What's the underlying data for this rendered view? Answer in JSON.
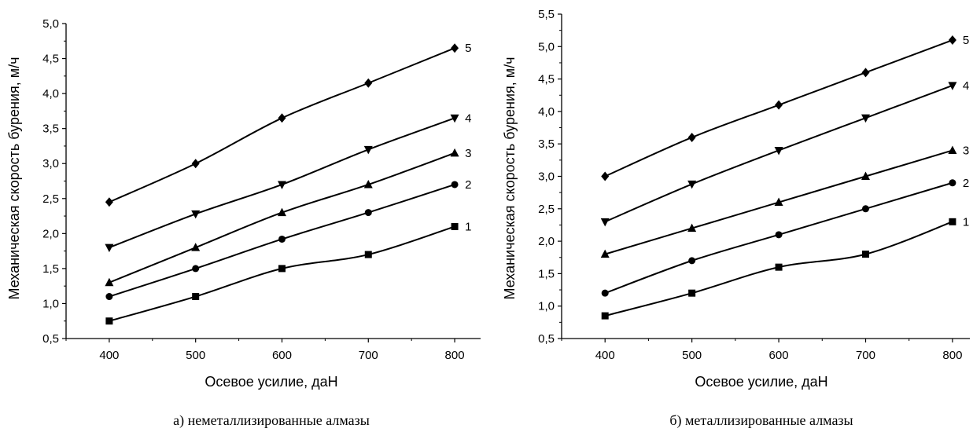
{
  "chart_data": [
    {
      "type": "line",
      "caption": "а) неметаллизированные алмазы",
      "xlabel": "Осевое усилие, даН",
      "ylabel": "Механическая скорость бурения, м/ч",
      "xlim": [
        350,
        830
      ],
      "ylim": [
        0.5,
        5.0
      ],
      "xticks": [
        400,
        500,
        600,
        700,
        800
      ],
      "xtick_labels": [
        "400",
        "500",
        "600",
        "700",
        "800"
      ],
      "yticks": [
        0.5,
        1.0,
        1.5,
        2.0,
        2.5,
        3.0,
        3.5,
        4.0,
        4.5,
        5.0
      ],
      "ytick_labels": [
        "0,5",
        "1,0",
        "1,5",
        "2,0",
        "2,5",
        "3,0",
        "3,5",
        "4,0",
        "4,5",
        "5,0"
      ],
      "grid": false,
      "x": [
        400,
        500,
        600,
        700,
        800
      ],
      "series": [
        {
          "name": "1",
          "marker": "square",
          "values": [
            0.75,
            1.1,
            1.5,
            1.7,
            2.1
          ]
        },
        {
          "name": "2",
          "marker": "circle",
          "values": [
            1.1,
            1.5,
            1.92,
            2.3,
            2.7
          ]
        },
        {
          "name": "3",
          "marker": "triangle-up",
          "values": [
            1.3,
            1.8,
            2.3,
            2.7,
            3.15
          ]
        },
        {
          "name": "4",
          "marker": "triangle-down",
          "values": [
            1.8,
            2.28,
            2.7,
            3.2,
            3.65
          ]
        },
        {
          "name": "5",
          "marker": "diamond",
          "values": [
            2.45,
            3.0,
            3.65,
            4.15,
            4.65
          ]
        }
      ]
    },
    {
      "type": "line",
      "caption": "б) металлизированные алмазы",
      "xlabel": "Осевое усилие, даН",
      "ylabel": "Механическая скорость бурения, м/ч",
      "xlim": [
        350,
        820
      ],
      "ylim": [
        0.5,
        5.5
      ],
      "xticks": [
        400,
        500,
        600,
        700,
        800
      ],
      "xtick_labels": [
        "400",
        "500",
        "600",
        "700",
        "800"
      ],
      "yticks": [
        0.5,
        1.0,
        1.5,
        2.0,
        2.5,
        3.0,
        3.5,
        4.0,
        4.5,
        5.0,
        5.5
      ],
      "ytick_labels": [
        "0,5",
        "1,0",
        "1,5",
        "2,0",
        "2,5",
        "3,0",
        "3,5",
        "4,0",
        "4,5",
        "5,0",
        "5,5"
      ],
      "grid": false,
      "x": [
        400,
        500,
        600,
        700,
        800
      ],
      "series": [
        {
          "name": "1",
          "marker": "square",
          "values": [
            0.85,
            1.2,
            1.6,
            1.8,
            2.3
          ]
        },
        {
          "name": "2",
          "marker": "circle",
          "values": [
            1.2,
            1.7,
            2.1,
            2.5,
            2.9
          ]
        },
        {
          "name": "3",
          "marker": "triangle-up",
          "values": [
            1.8,
            2.2,
            2.6,
            3.0,
            3.4
          ]
        },
        {
          "name": "4",
          "marker": "triangle-down",
          "values": [
            2.3,
            2.88,
            3.4,
            3.9,
            4.4
          ]
        },
        {
          "name": "5",
          "marker": "diamond",
          "values": [
            3.0,
            3.6,
            4.1,
            4.6,
            5.1
          ]
        }
      ]
    }
  ]
}
